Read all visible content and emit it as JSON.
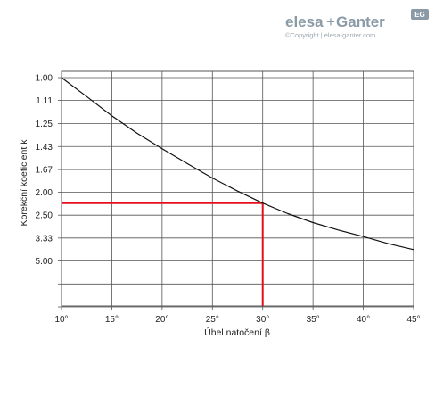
{
  "brand": {
    "logo_text_1": "elesa",
    "logo_plus": "+",
    "logo_text_2": "Ganter",
    "badge": "EG",
    "copyright": "©Copyright | elesa-ganter.com"
  },
  "chart_data": {
    "type": "line",
    "title": "",
    "xlabel": "Úhel natočení β",
    "ylabel": "Korekční koeficient k",
    "xlim": [
      10,
      45
    ],
    "x_ticks": [
      10,
      15,
      20,
      25,
      30,
      35,
      40,
      45
    ],
    "x_tick_labels": [
      "10°",
      "15°",
      "20°",
      "25°",
      "30°",
      "35°",
      "40°",
      "45°"
    ],
    "y_scale": "reciprocal",
    "y_ticks": [
      1.0,
      1.11,
      1.25,
      1.43,
      1.67,
      2.0,
      2.5,
      3.33,
      5.0
    ],
    "y_tick_labels": [
      "1.00",
      "1.11",
      "1.25",
      "1.43",
      "1.67",
      "2.00",
      "2.50",
      "3.33",
      "5.00"
    ],
    "series": [
      {
        "color": "#111111",
        "x": [
          10,
          12.5,
          15,
          17.5,
          20,
          22.5,
          25,
          27.5,
          30,
          32.5,
          35,
          37.5,
          40,
          42.5,
          45
        ],
        "y": [
          1.0,
          1.09,
          1.2,
          1.32,
          1.45,
          1.6,
          1.78,
          1.98,
          2.21,
          2.46,
          2.72,
          2.98,
          3.26,
          3.63,
          4.0
        ]
      }
    ],
    "highlight": {
      "color": "#e3101b",
      "x": 30,
      "y": 2.21
    },
    "grid": true,
    "legend": "none"
  }
}
